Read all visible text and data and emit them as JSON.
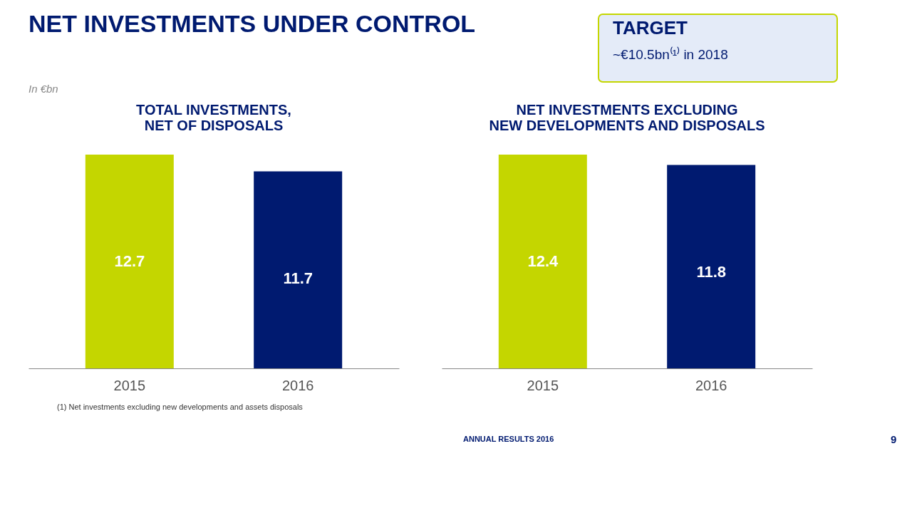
{
  "chart_data": [
    {
      "type": "other",
      "title": "NET INVESTMENTS UNDER CONTROL",
      "subtitle": "In €bn",
      "annotations": [
        "TARGET",
        "~€10.5bn⁽¹⁾ in 2018"
      ]
    },
    {
      "type": "bar",
      "title": "TOTAL INVESTMENTS,\nNET OF DISPOSALS",
      "categories": [
        "2015",
        "2016"
      ],
      "values": [
        12.7,
        11.7
      ],
      "colors": [
        "#c4d600",
        "#001a70"
      ],
      "data_labels": true,
      "annotations": [
        "(1)  Net investments excluding new developments and assets disposals"
      ]
    },
    {
      "type": "bar",
      "title": "NET INVESTMENTS EXCLUDING\nNEW DEVELOPMENTS AND DISPOSALS",
      "categories": [
        "2015",
        "2016"
      ],
      "values": [
        12.4,
        11.8
      ],
      "colors": [
        "#c4d600",
        "#001a70"
      ],
      "data_labels": true,
      "annotations": [
        "ANNUAL RESULTS 2016",
        "9"
      ]
    }
  ]
}
